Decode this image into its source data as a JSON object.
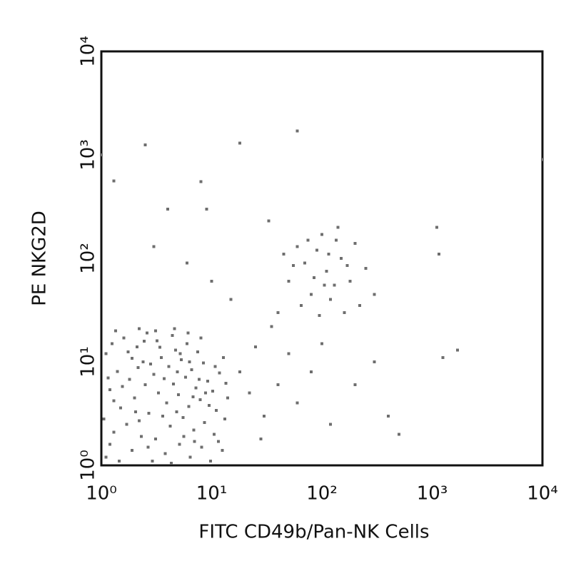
{
  "chart_data": {
    "type": "scatter",
    "x_label": "FITC CD49b/Pan-NK Cells",
    "y_label": "PE NKG2D",
    "log_x": true,
    "log_y": true,
    "xlim": [
      1,
      10000
    ],
    "ylim": [
      1,
      10000
    ],
    "xticks": [
      {
        "value": 1,
        "label": "10⁰"
      },
      {
        "value": 10,
        "label": "10¹"
      },
      {
        "value": 100,
        "label": "10²"
      },
      {
        "value": 1000,
        "label": "10³"
      },
      {
        "value": 10000,
        "label": "10⁴"
      }
    ],
    "yticks": [
      {
        "value": 1,
        "label": "10⁰"
      },
      {
        "value": 10,
        "label": "10¹"
      },
      {
        "value": 100,
        "label": "10²"
      },
      {
        "value": 1000,
        "label": "10³"
      },
      {
        "value": 10000,
        "label": "10⁴"
      }
    ],
    "color": "#6e6e6e",
    "x": [
      1.1,
      1.3,
      1.5,
      1.2,
      1.4,
      1.1,
      1.6,
      1.9,
      2.2,
      2.0,
      1.8,
      2.4,
      2.1,
      2.6,
      2.9,
      3.1,
      2.7,
      3.3,
      3.0,
      3.5,
      3.2,
      3.8,
      4.2,
      3.9,
      4.5,
      4.1,
      4.7,
      4.4,
      5.1,
      5.5,
      5.0,
      5.8,
      5.3,
      6.0,
      6.4,
      6.9,
      6.2,
      7.2,
      6.6,
      7.5,
      8.1,
      8.6,
      7.9,
      9.2,
      8.4,
      9.8,
      10.5,
      11,
      10.2,
      11.8,
      12.5,
      13.2,
      14,
      12.8,
      1.2,
      1.7,
      1.3,
      1.9,
      2.3,
      2.5,
      2.8,
      3.6,
      3.4,
      4.8,
      4.9,
      5.6,
      6.8,
      7.7,
      9.5,
      11.5,
      1.05,
      1.15,
      1.25,
      1.45,
      1.55,
      1.75,
      2.05,
      2.15,
      2.45,
      2.65,
      3.7,
      4.3,
      5.2,
      6.3,
      7.0,
      8.8,
      10.8,
      13.5,
      1.35,
      2.2,
      3.1,
      4.6,
      6.1,
      8.0,
      50,
      70,
      90,
      110,
      130,
      80,
      150,
      200,
      60,
      100,
      120,
      180,
      250,
      40,
      65,
      95,
      160,
      220,
      75,
      140,
      45,
      300,
      85,
      115,
      170,
      55,
      105,
      135,
      18,
      22,
      25,
      30,
      35,
      28,
      40,
      50,
      60,
      80,
      100,
      120,
      200,
      300,
      400,
      500,
      15,
      10,
      6,
      3,
      4,
      8,
      2.5,
      1.3,
      18,
      60,
      1100,
      1150,
      1700,
      1250,
      10000,
      1,
      33,
      9
    ],
    "values": [
      1.2,
      2.1,
      3.6,
      5.4,
      8.1,
      12,
      17,
      1.4,
      2.7,
      4.5,
      6.8,
      10,
      14,
      19,
      1.1,
      1.8,
      3.2,
      5,
      7.6,
      11,
      16,
      1.3,
      2.4,
      4,
      6.1,
      9,
      13,
      18,
      1.6,
      2.9,
      4.8,
      7.1,
      10.5,
      15,
      1.2,
      2.2,
      3.7,
      5.6,
      8.4,
      12.5,
      1.5,
      2.6,
      4.3,
      6.5,
      9.8,
      1.1,
      2,
      3.4,
      5.2,
      7.8,
      1.4,
      2.8,
      4.5,
      11,
      1.6,
      2.5,
      4.2,
      10.8,
      1.9,
      6,
      9.5,
      3,
      13.8,
      3.3,
      8,
      1.9,
      4.6,
      6.8,
      3.8,
      1.7,
      2.8,
      7,
      15,
      1.1,
      5.8,
      12.5,
      3.3,
      8.8,
      15.8,
      1.5,
      6.9,
      1.05,
      12,
      10,
      1.7,
      5,
      9,
      6.2,
      20,
      21,
      20,
      21,
      19,
      17,
      60,
      90,
      120,
      75,
      55,
      45,
      100,
      140,
      130,
      170,
      40,
      60,
      80,
      30,
      35,
      28,
      30,
      35,
      150,
      200,
      110,
      45,
      65,
      110,
      85,
      85,
      55,
      150,
      8,
      5,
      14,
      3,
      22,
      1.8,
      6,
      12,
      4,
      8,
      15,
      2.5,
      6,
      10,
      3,
      2,
      40,
      60,
      90,
      130,
      300,
      550,
      1250,
      560,
      1300,
      1700,
      200,
      110,
      13,
      11,
      900,
      1000,
      230,
      300
    ]
  }
}
